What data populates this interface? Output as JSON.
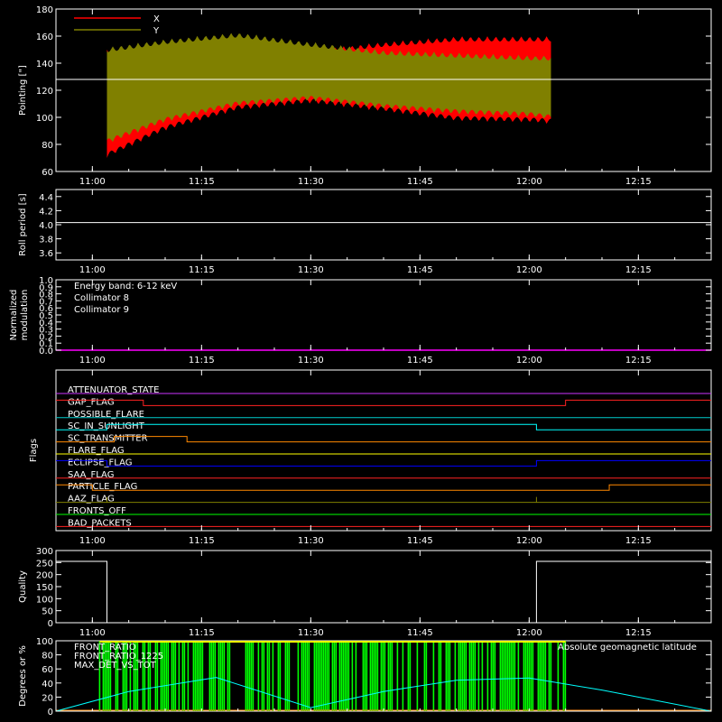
{
  "chart_data": [
    {
      "type": "area",
      "ylabel": "Pointing [\"]",
      "ylim": [
        60,
        180
      ],
      "yticks": [
        60,
        80,
        100,
        120,
        140,
        160,
        180
      ],
      "xlim": [
        "10:55",
        "12:25"
      ],
      "xticks": [
        "11:00",
        "11:15",
        "11:30",
        "11:45",
        "12:00",
        "12:15"
      ],
      "reference_line": 128,
      "series": [
        {
          "name": "X",
          "color": "#ff0000",
          "x": [
            "11:02",
            "11:10",
            "11:20",
            "11:30",
            "11:40",
            "11:50",
            "12:00",
            "12:03"
          ],
          "low": [
            70,
            90,
            105,
            110,
            104,
            97,
            96,
            95
          ],
          "high": [
            150,
            150,
            148,
            150,
            156,
            160,
            160,
            160
          ]
        },
        {
          "name": "Y",
          "color": "#808000",
          "x": [
            "11:02",
            "11:10",
            "11:20",
            "11:30",
            "11:40",
            "11:50",
            "12:00",
            "12:03"
          ],
          "low": [
            80,
            96,
            108,
            112,
            106,
            102,
            100,
            98
          ],
          "high": [
            152,
            158,
            163,
            156,
            150,
            148,
            146,
            146
          ]
        }
      ]
    },
    {
      "type": "line",
      "ylabel": "Roll period [s]",
      "ylim": [
        3.5,
        4.5
      ],
      "yticks": [
        "3.6",
        "3.8",
        "4.0",
        "4.2",
        "4.4"
      ],
      "xticks": [
        "11:00",
        "11:15",
        "11:30",
        "11:45",
        "12:00",
        "12:15"
      ],
      "x": [
        "10:55",
        "12:25"
      ],
      "values": [
        4.03,
        4.03
      ]
    },
    {
      "type": "line",
      "ylabel": "Normalized modulation",
      "ylabel_line1": "Normalized",
      "ylabel_line2": "modulation",
      "ylim": [
        0,
        1
      ],
      "yticks": [
        "0.0",
        "0.1",
        "0.2",
        "0.3",
        "0.4",
        "0.5",
        "0.6",
        "0.7",
        "0.8",
        "0.9",
        "1.0"
      ],
      "xticks": [
        "11:00",
        "11:15",
        "11:30",
        "11:45",
        "12:00",
        "12:15"
      ],
      "annotation": "Energy band: 6-12 keV",
      "series": [
        {
          "name": "Collimator 8",
          "color": "#00ffff",
          "values": [
            0,
            0
          ]
        },
        {
          "name": "Collimator 9",
          "color": "#ff00ff",
          "values": [
            0,
            0
          ]
        }
      ]
    },
    {
      "type": "line",
      "ylabel": "Flags",
      "xticks": [
        "11:00",
        "11:15",
        "11:30",
        "11:45",
        "12:00",
        "12:15"
      ],
      "flags": [
        {
          "name": "ATTENUATOR_STATE",
          "color": "#cc33ff",
          "steps": []
        },
        {
          "name": "GAP_FLAG",
          "color": "#ff2222",
          "steps": [
            [
              "10:55",
              1
            ],
            [
              "11:07",
              0
            ],
            [
              "12:05",
              1
            ],
            [
              "12:25",
              1
            ]
          ]
        },
        {
          "name": "POSSIBLE_FLARE",
          "color": "#00cccc",
          "steps": []
        },
        {
          "name": "SC_IN_SUNLIGHT",
          "color": "#00ffff",
          "steps": [
            [
              "10:55",
              0
            ],
            [
              "11:02",
              1
            ],
            [
              "12:01",
              0
            ],
            [
              "12:25",
              0
            ]
          ]
        },
        {
          "name": "SC_TRANSMITTER",
          "color": "#ff8800",
          "steps": [
            [
              "10:55",
              0
            ],
            [
              "11:03",
              1
            ],
            [
              "11:13",
              0
            ],
            [
              "12:25",
              0
            ]
          ]
        },
        {
          "name": "FLARE_FLAG",
          "color": "#ffff00",
          "steps": []
        },
        {
          "name": "ECLIPSE_FLAG",
          "color": "#0000ff",
          "steps": [
            [
              "10:55",
              1
            ],
            [
              "11:02",
              0
            ],
            [
              "12:01",
              1
            ],
            [
              "12:25",
              1
            ]
          ]
        },
        {
          "name": "SAA_FLAG",
          "color": "#ff2222",
          "steps": []
        },
        {
          "name": "PARTICLE_FLAG",
          "color": "#ff8800",
          "steps": [
            [
              "10:55",
              1
            ],
            [
              "11:00",
              0
            ],
            [
              "12:11",
              1
            ],
            [
              "12:25",
              1
            ]
          ]
        },
        {
          "name": "AAZ_FLAG",
          "color": "#808000",
          "steps": [
            [
              "10:55",
              0
            ],
            [
              "11:02",
              1
            ],
            [
              "11:02",
              0
            ],
            [
              "12:01",
              1
            ],
            [
              "12:01",
              0
            ],
            [
              "12:25",
              0
            ]
          ]
        },
        {
          "name": "FRONTS_OFF",
          "color": "#00ff00",
          "steps": []
        },
        {
          "name": "BAD_PACKETS",
          "color": "#ff2222",
          "steps": []
        }
      ]
    },
    {
      "type": "line",
      "ylabel": "Quality",
      "ylim": [
        0,
        300
      ],
      "yticks": [
        "0",
        "50",
        "100",
        "150",
        "200",
        "250",
        "300"
      ],
      "xticks": [
        "11:00",
        "11:15",
        "11:30",
        "11:45",
        "12:00",
        "12:15"
      ],
      "x": [
        "10:55",
        "11:02",
        "11:02",
        "12:01",
        "12:01",
        "12:25"
      ],
      "values": [
        255,
        255,
        0,
        0,
        255,
        255
      ]
    },
    {
      "type": "line",
      "ylabel": "Degrees or %",
      "ylim": [
        0,
        100
      ],
      "yticks": [
        "0",
        "20",
        "40",
        "60",
        "80",
        "100"
      ],
      "xticks": [
        "11:00",
        "11:15",
        "11:30",
        "11:45",
        "12:00",
        "12:15"
      ],
      "legend": "top-left",
      "series": [
        {
          "name": "FRONT_RATIO",
          "color": "#ffff00"
        },
        {
          "name": "FRONT_RATIO_1225",
          "color": "#00ff00"
        },
        {
          "name": "MAX_DET_VS_TOT",
          "color": "#ff8800"
        },
        {
          "name": "Absolute geomagnetic latitude",
          "color": "#00ffff",
          "x": [
            "10:55",
            "11:05",
            "11:17",
            "11:30",
            "11:40",
            "11:50",
            "12:00",
            "12:10",
            "12:25"
          ],
          "values": [
            0,
            28,
            48,
            5,
            28,
            44,
            47,
            30,
            0
          ]
        }
      ],
      "front_ratio_range": [
        "11:01",
        "12:05"
      ]
    }
  ]
}
